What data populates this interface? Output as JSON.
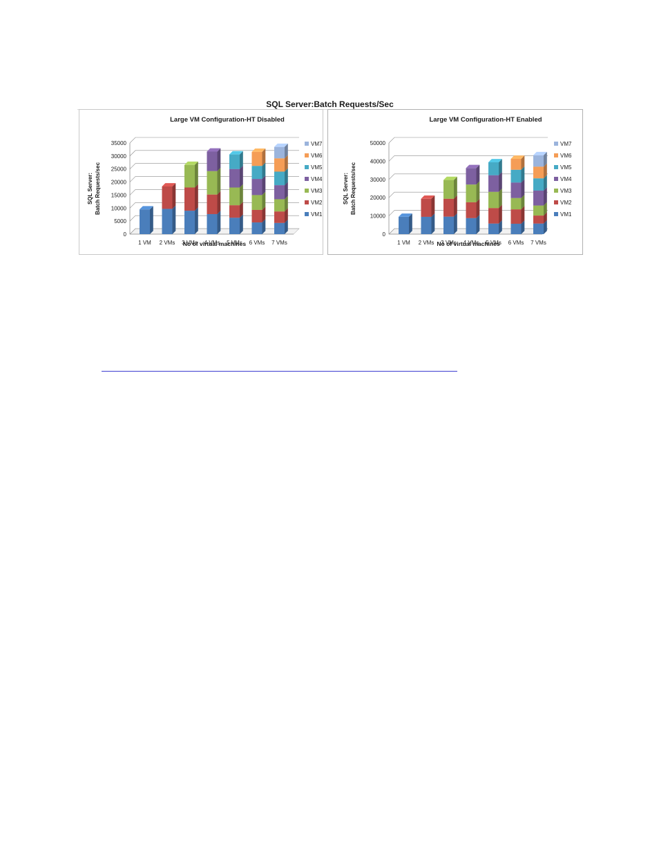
{
  "figure_title": "SQL Server:Batch Requests/Sec",
  "colors": {
    "VM1": "#4a7ebb",
    "VM2": "#be4b48",
    "VM3": "#98b954",
    "VM4": "#7d60a0",
    "VM5": "#46aac5",
    "VM6": "#f59d56",
    "VM7": "#9bb4dc"
  },
  "chart_data": [
    {
      "type": "bar",
      "stacked": true,
      "title": "Large VM Configuration-HT Disabled",
      "xlabel": "No of virtual machines",
      "ylabel_lines": [
        "SQL Server:",
        "Batch Requests/sec"
      ],
      "ylim": [
        0,
        35000
      ],
      "yticks": [
        0,
        5000,
        10000,
        15000,
        20000,
        25000,
        30000,
        35000
      ],
      "categories": [
        "1 VM",
        "2 VMs",
        "3 VMs",
        "4 VMs",
        "5 VMs",
        "6 VMs",
        "7 VMs"
      ],
      "legend_position": "right",
      "series": [
        {
          "name": "VM1",
          "values": [
            9500,
            9700,
            9000,
            7700,
            6300,
            4500,
            4300
          ]
        },
        {
          "name": "VM2",
          "values": [
            null,
            8600,
            8900,
            7500,
            4800,
            4800,
            4400
          ]
        },
        {
          "name": "VM3",
          "values": [
            null,
            null,
            8700,
            9000,
            6800,
            5700,
            4700
          ]
        },
        {
          "name": "VM4",
          "values": [
            null,
            null,
            null,
            7500,
            7100,
            6200,
            5400
          ]
        },
        {
          "name": "VM5",
          "values": [
            null,
            null,
            null,
            null,
            5600,
            5000,
            5200
          ]
        },
        {
          "name": "VM6",
          "values": [
            null,
            null,
            null,
            null,
            null,
            5400,
            5100
          ]
        },
        {
          "name": "VM7",
          "values": [
            null,
            null,
            null,
            null,
            null,
            null,
            4400
          ]
        }
      ]
    },
    {
      "type": "bar",
      "stacked": true,
      "title": "Large VM Configuration-HT Enabled",
      "xlabel": "No of virtual machines",
      "ylabel_lines": [
        "SQL Server:",
        "Batch Requests/sec"
      ],
      "ylim": [
        0,
        50000
      ],
      "yticks": [
        0,
        10000,
        20000,
        30000,
        40000,
        50000
      ],
      "categories": [
        "1 VM",
        "2 VMs",
        "3 VMs",
        "4 VMs",
        "5 VMs",
        "6 VMs",
        "7 VMs"
      ],
      "legend_position": "right",
      "series": [
        {
          "name": "VM1",
          "values": [
            9500,
            9500,
            9600,
            8800,
            5800,
            5700,
            5800
          ]
        },
        {
          "name": "VM2",
          "values": [
            null,
            9900,
            9800,
            8700,
            8500,
            7900,
            4400
          ]
        },
        {
          "name": "VM3",
          "values": [
            null,
            null,
            10300,
            9700,
            8900,
            6200,
            5500
          ]
        },
        {
          "name": "VM4",
          "values": [
            null,
            null,
            null,
            9000,
            9100,
            8500,
            8200
          ]
        },
        {
          "name": "VM5",
          "values": [
            null,
            null,
            null,
            null,
            7100,
            7000,
            6700
          ]
        },
        {
          "name": "VM6",
          "values": [
            null,
            null,
            null,
            null,
            null,
            6000,
            6400
          ]
        },
        {
          "name": "VM7",
          "values": [
            null,
            null,
            null,
            null,
            null,
            null,
            6300
          ]
        }
      ]
    }
  ]
}
